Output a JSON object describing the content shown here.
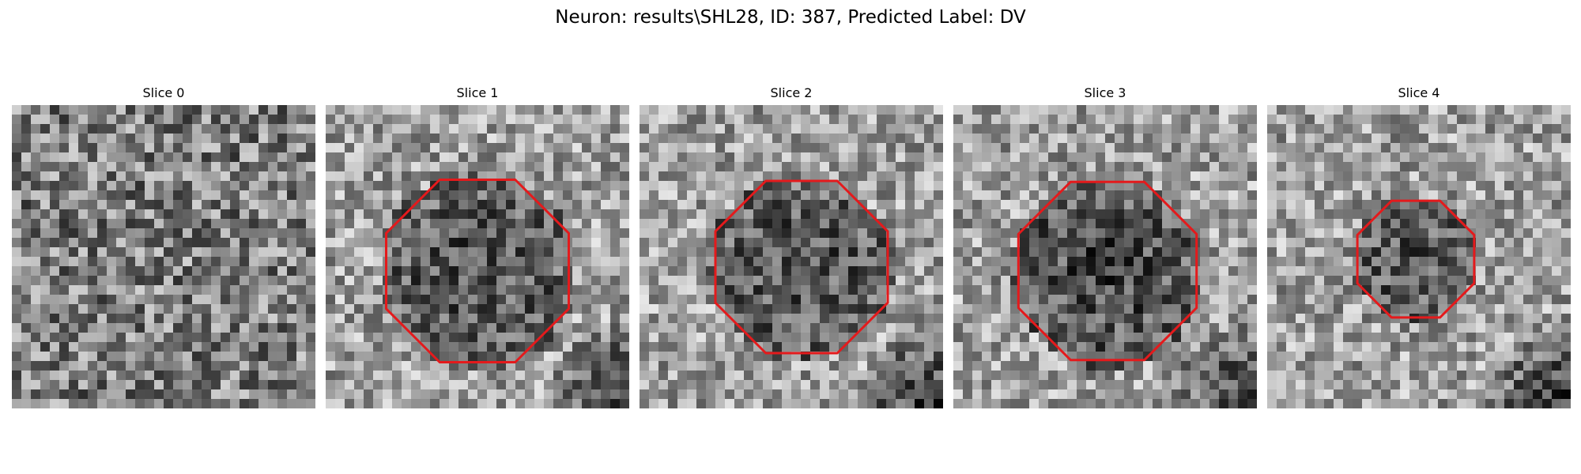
{
  "figure": {
    "title": "Neuron: results\\SHL28, ID: 387, Predicted Label: DV"
  },
  "panels": [
    {
      "title": "Slice 0",
      "contour": null,
      "dark_corner": false
    },
    {
      "title": "Slice 1",
      "contour": {
        "shape": "octagon"
      },
      "dark_corner": true
    },
    {
      "title": "Slice 2",
      "contour": {
        "shape": "octagon"
      },
      "dark_corner": true
    },
    {
      "title": "Slice 3",
      "contour": {
        "shape": "octagon"
      },
      "dark_corner": true
    },
    {
      "title": "Slice 4",
      "contour": {
        "shape": "octagon"
      },
      "dark_corner": true
    }
  ],
  "colors": {
    "contour": "#e41a1c",
    "background": "#ffffff"
  }
}
